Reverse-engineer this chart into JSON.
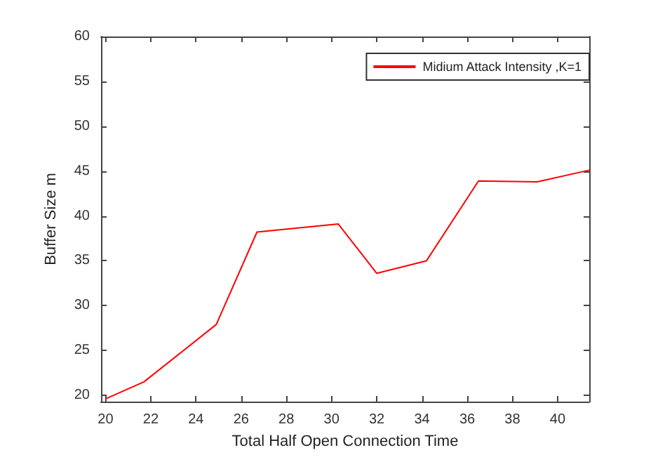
{
  "chart_data": {
    "type": "line",
    "xlabel": "Total Half Open Connection Time",
    "ylabel": "Buffer Size m",
    "x": [
      20,
      21.7,
      24.9,
      26.7,
      30.3,
      32,
      34.2,
      36.5,
      39.1,
      41.4
    ],
    "series": [
      {
        "name": "Midium Attack Intensity ,K=1",
        "color": "#ff0000",
        "values": [
          19.6,
          21.5,
          27.9,
          38.2,
          39.1,
          33.6,
          35.0,
          43.9,
          43.8,
          45.1
        ]
      }
    ],
    "xlim": [
      19.8,
      41.4
    ],
    "xticks": [
      20,
      22,
      24,
      26,
      28,
      30,
      32,
      34,
      36,
      38,
      40
    ],
    "ylim": [
      19.3,
      60
    ],
    "yticks": [
      20,
      25,
      30,
      35,
      40,
      45,
      50,
      55,
      60
    ],
    "grid": false,
    "legend": "top right",
    "marker": "none",
    "line_style": "solid"
  }
}
